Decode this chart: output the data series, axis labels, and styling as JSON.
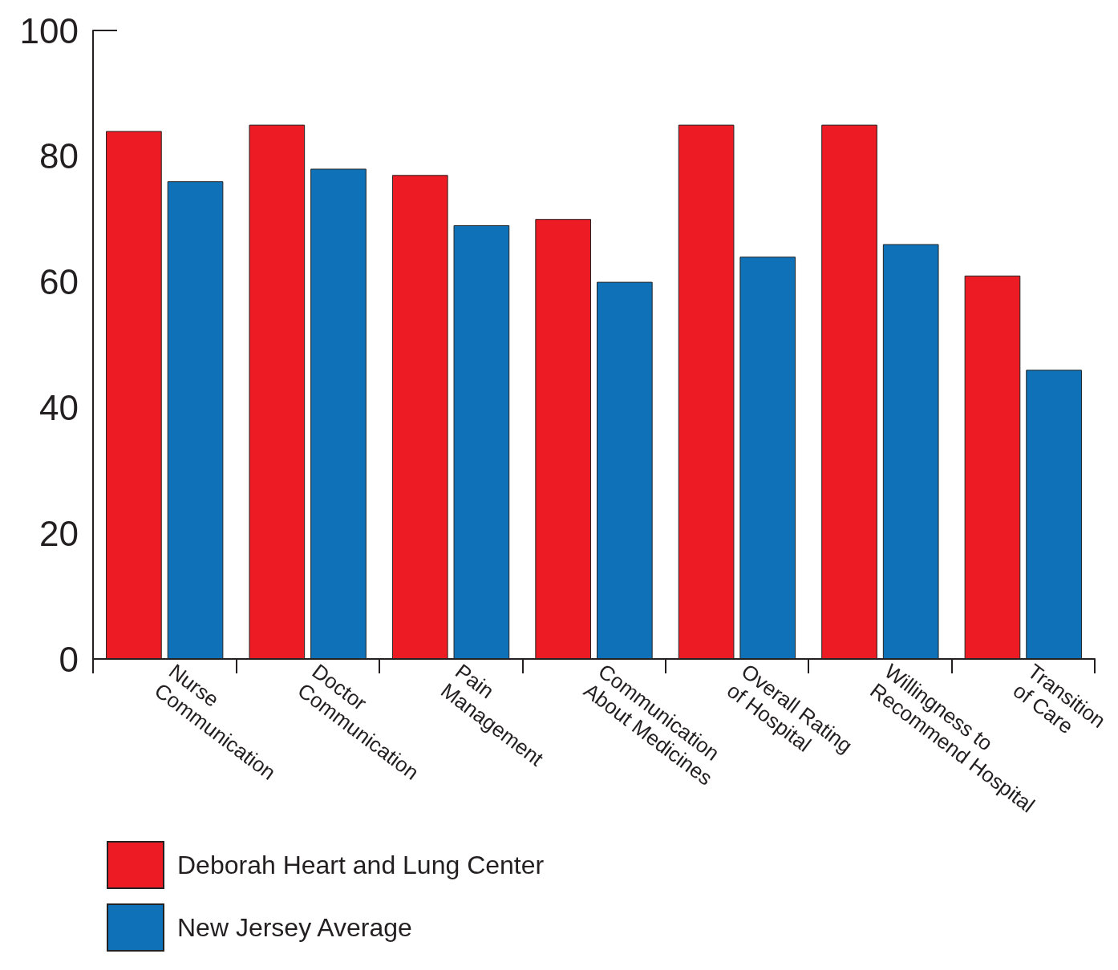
{
  "chart_data": {
    "type": "bar",
    "categories": [
      "Nurse\nCommunication",
      "Doctor\nCommunication",
      "Pain\nManagement",
      "Communication\nAbout Medicines",
      "Overall Rating\nof Hospital",
      "Willingness to\nRecommend Hospital",
      "Transition\nof Care"
    ],
    "series": [
      {
        "name": "Deborah Heart and Lung Center",
        "color": "#ed1c24",
        "values": [
          84,
          85,
          77,
          70,
          85,
          85,
          61
        ]
      },
      {
        "name": "New Jersey Average",
        "color": "#0f72b9",
        "values": [
          76,
          78,
          69,
          60,
          64,
          66,
          46
        ]
      }
    ],
    "ylim": [
      0,
      100
    ],
    "yticks": [
      0,
      20,
      40,
      60,
      80,
      100
    ],
    "grid": false,
    "legend": "bottom left"
  }
}
